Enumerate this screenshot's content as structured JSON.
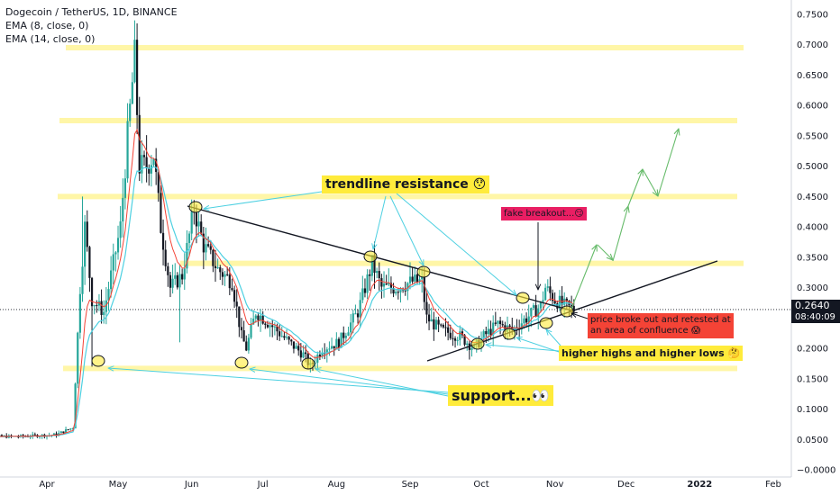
{
  "header": {
    "title": "Dogecoin / TetherUS, 1D, BINANCE",
    "ema8": "EMA (8, close, 0)",
    "ema14": "EMA (14, close, 0)"
  },
  "price_label": {
    "price": "0.2640",
    "timer": "08:40:09"
  },
  "annotations": {
    "trendline_resistance": "trendline resistance 😯",
    "fake_breakout": "fake breakout...😏",
    "broke_out_line1": "price broke out and retested at",
    "broke_out_line2": "an area of confluence 😱",
    "higher_highs": "higher highs and higher lows 🤔",
    "support": "support...👀"
  },
  "colors": {
    "up": "#26a69a",
    "down": "#131722",
    "zone": "#fff59d",
    "ema8": "#f44336",
    "ema14": "#4dd0e1",
    "arrow_cyan": "#4dd0e1",
    "arrow_green": "#66bb6a"
  },
  "chart_data": {
    "type": "candlestick",
    "symbol": "Dogecoin / TetherUS",
    "timeframe": "1D",
    "exchange": "BINANCE",
    "y_ticks": [
      "0.7500",
      "0.7000",
      "0.6500",
      "0.6000",
      "0.5500",
      "0.5000",
      "0.4500",
      "0.4000",
      "0.3500",
      "0.3000",
      "0.2500",
      "0.2000",
      "0.1500",
      "0.1000",
      "0.0500",
      "−0.0000"
    ],
    "y_values": [
      0.75,
      0.7,
      0.65,
      0.6,
      0.55,
      0.5,
      0.45,
      0.4,
      0.35,
      0.3,
      0.25,
      0.2,
      0.15,
      0.1,
      0.05,
      0.0
    ],
    "ylim": [
      -0.0265,
      0.7735
    ],
    "x_ticks": [
      "Apr",
      "May",
      "Jun",
      "Jul",
      "Aug",
      "Sep",
      "Oct",
      "Nov",
      "Dec",
      "2022",
      "Feb"
    ],
    "x_tick_dates": [
      "2021-04-01",
      "2021-05-01",
      "2021-06-01",
      "2021-07-01",
      "2021-08-01",
      "2021-09-01",
      "2021-10-01",
      "2021-11-01",
      "2021-12-01",
      "2022-01-01",
      "2022-02-01"
    ],
    "last_price": 0.264,
    "zones": [
      0.695,
      0.575,
      0.45,
      0.34,
      0.167
    ],
    "close_path": [
      [
        "2021-03-01",
        0.055
      ],
      [
        "2021-03-20",
        0.055
      ],
      [
        "2021-04-05",
        0.058
      ],
      [
        "2021-04-12",
        0.07
      ],
      [
        "2021-04-15",
        0.3
      ],
      [
        "2021-04-17",
        0.4
      ],
      [
        "2021-04-20",
        0.28
      ],
      [
        "2021-04-25",
        0.26
      ],
      [
        "2021-04-28",
        0.32
      ],
      [
        "2021-05-02",
        0.4
      ],
      [
        "2021-05-05",
        0.55
      ],
      [
        "2021-05-08",
        0.68
      ],
      [
        "2021-05-10",
        0.5
      ],
      [
        "2021-05-13",
        0.5
      ],
      [
        "2021-05-16",
        0.52
      ],
      [
        "2021-05-19",
        0.4
      ],
      [
        "2021-05-23",
        0.3
      ],
      [
        "2021-05-28",
        0.32
      ],
      [
        "2021-06-02",
        0.43
      ],
      [
        "2021-06-06",
        0.37
      ],
      [
        "2021-06-12",
        0.33
      ],
      [
        "2021-06-18",
        0.31
      ],
      [
        "2021-06-22",
        0.22
      ],
      [
        "2021-06-24",
        0.2
      ],
      [
        "2021-06-28",
        0.26
      ],
      [
        "2021-07-04",
        0.24
      ],
      [
        "2021-07-12",
        0.21
      ],
      [
        "2021-07-18",
        0.19
      ],
      [
        "2021-07-21",
        0.17
      ],
      [
        "2021-07-26",
        0.2
      ],
      [
        "2021-08-02",
        0.21
      ],
      [
        "2021-08-10",
        0.26
      ],
      [
        "2021-08-16",
        0.34
      ],
      [
        "2021-08-20",
        0.3
      ],
      [
        "2021-08-26",
        0.3
      ],
      [
        "2021-09-02",
        0.31
      ],
      [
        "2021-09-06",
        0.31
      ],
      [
        "2021-09-08",
        0.25
      ],
      [
        "2021-09-14",
        0.23
      ],
      [
        "2021-09-22",
        0.22
      ],
      [
        "2021-09-28",
        0.2
      ],
      [
        "2021-10-02",
        0.22
      ],
      [
        "2021-10-08",
        0.24
      ],
      [
        "2021-10-14",
        0.23
      ],
      [
        "2021-10-20",
        0.25
      ],
      [
        "2021-10-26",
        0.27
      ],
      [
        "2021-10-28",
        0.3
      ],
      [
        "2021-11-01",
        0.28
      ],
      [
        "2021-11-05",
        0.27
      ],
      [
        "2021-11-09",
        0.264
      ]
    ],
    "ema8_label": "EMA (8, close, 0)",
    "ema14_label": "EMA (14, close, 0)"
  }
}
